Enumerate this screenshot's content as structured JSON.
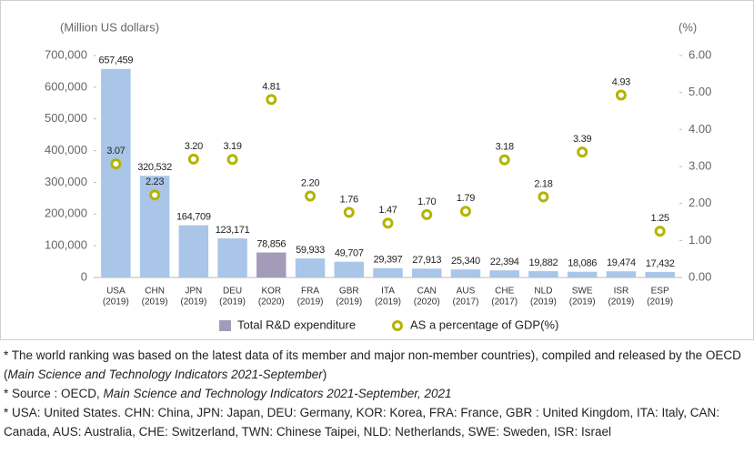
{
  "chart_data": {
    "type": "bar",
    "categories": [
      "USA",
      "CHN",
      "JPN",
      "DEU",
      "KOR",
      "FRA",
      "GBR",
      "ITA",
      "CAN",
      "AUS",
      "CHE",
      "NLD",
      "SWE",
      "ISR",
      "ESP"
    ],
    "category_periods": [
      "(2019)",
      "(2019)",
      "(2019)",
      "(2019)",
      "(2020)",
      "(2019)",
      "(2019)",
      "(2019)",
      "(2020)",
      "(2017)",
      "(2017)",
      "(2019)",
      "(2019)",
      "(2019)",
      "(2019)"
    ],
    "y_label": "(Million US dollars)",
    "y2_label": "(%)",
    "series": [
      {
        "name": "Total R&D expenditure",
        "type": "bar",
        "color": "#a9c5e8",
        "highlight": {
          "index": 4,
          "color": "#a39bb8"
        },
        "values": [
          657459,
          320532,
          164709,
          123171,
          78856,
          59933,
          49707,
          29397,
          27913,
          25340,
          22394,
          19882,
          18086,
          19474,
          17432
        ],
        "value_labels": [
          "657,459",
          "320,532",
          "164,709",
          "123,171",
          "78,856",
          "59,933",
          "49,707",
          "29,397",
          "27,913",
          "25,340",
          "22,394",
          "19,882",
          "18,086",
          "19,474",
          "17,432"
        ]
      },
      {
        "name": "AS a percentage of GDP(%)",
        "type": "scatter",
        "axis": "y2",
        "color": "#b3b400",
        "values": [
          3.07,
          2.23,
          3.2,
          3.19,
          4.81,
          2.2,
          1.76,
          1.47,
          1.7,
          1.79,
          3.18,
          2.18,
          3.39,
          4.93,
          1.25
        ],
        "value_labels": [
          "3.07",
          "2.23",
          "3.20",
          "3.19",
          "4.81",
          "2.20",
          "1.76",
          "1.47",
          "1.70",
          "1.79",
          "3.18",
          "2.18",
          "3.39",
          "4.93",
          "1.25"
        ]
      }
    ],
    "ylim": [
      0,
      700000
    ],
    "yticks": [
      0,
      {
        "value": 100000,
        "label": "100,000"
      },
      {
        "value": 200000,
        "label": "200,000"
      },
      {
        "value": 300000,
        "label": "300,000"
      },
      {
        "value": 400000,
        "label": "400,000"
      },
      {
        "value": 500000,
        "label": "500,000"
      },
      {
        "value": 600000,
        "label": "600,000"
      },
      {
        "value": 700000,
        "label": "700,000"
      }
    ],
    "y2lim": [
      0,
      6
    ],
    "y2ticks": [
      {
        "value": 0,
        "label": "0.00"
      },
      {
        "value": 1,
        "label": "1.00"
      },
      {
        "value": 2,
        "label": "2.00"
      },
      {
        "value": 3,
        "label": "3.00"
      },
      {
        "value": 4,
        "label": "4.00"
      },
      {
        "value": 5,
        "label": "5.00"
      },
      {
        "value": 6,
        "label": "6.00"
      }
    ],
    "legend": "bottom"
  },
  "notes": [
    [
      {
        "text": "* The world ranking was based on the latest data of its member and major non-member countries), compiled and released by the OECD (",
        "italic": false
      },
      {
        "text": "Main Science and Technology Indicators 2021-September",
        "italic": true
      },
      {
        "text": ")",
        "italic": false
      }
    ],
    [
      {
        "text": "* Source : OECD, ",
        "italic": false
      },
      {
        "text": "Main Science and Technology Indicators 2021-September, 2021",
        "italic": true
      }
    ],
    [
      {
        "text": "* USA: United States. CHN: China, JPN: Japan, DEU: Germany, KOR: Korea, FRA: France, GBR : United Kingdom, ITA: Italy, CAN: Canada, AUS: Australia, CHE: Switzerland, TWN: Chinese Taipei, NLD: Netherlands, SWE: Sweden, ISR: Israel",
        "italic": false
      }
    ]
  ]
}
